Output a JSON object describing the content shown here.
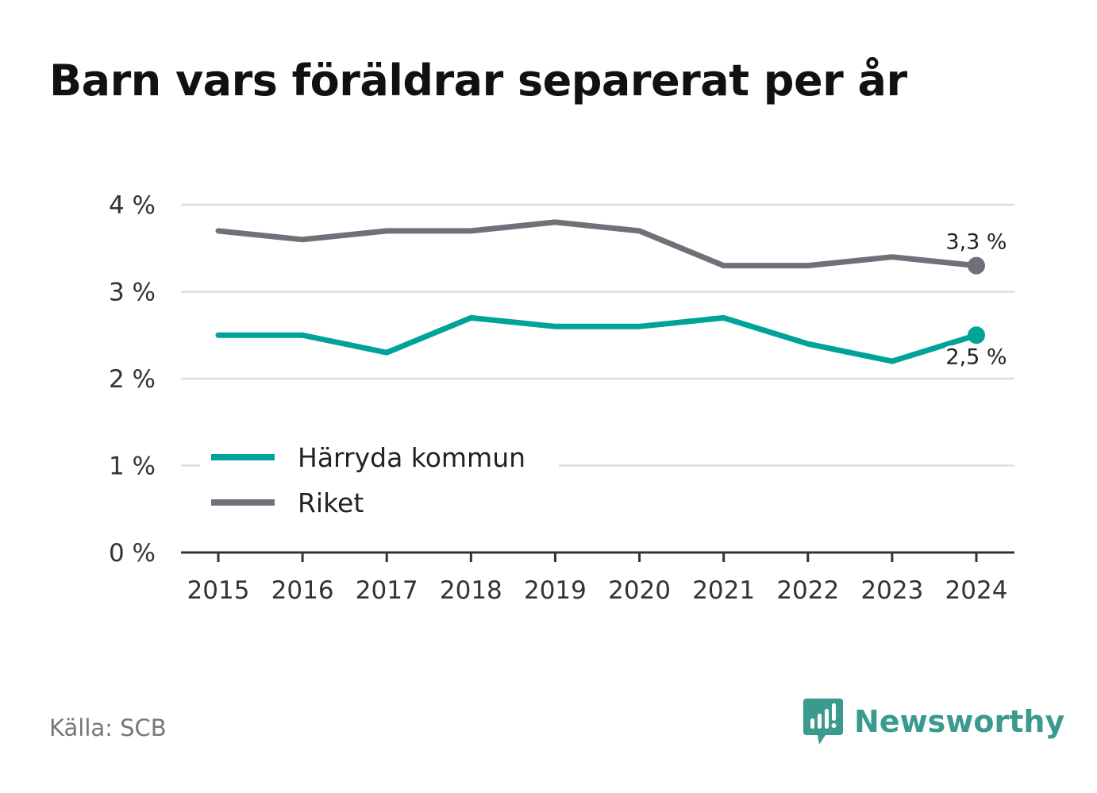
{
  "title": "Barn vars föräldrar separerat per år",
  "source": "Källa: SCB",
  "brand": "Newsworthy",
  "colors": {
    "brand": "#3a9a8d"
  },
  "chart_data": {
    "type": "line",
    "title": "Barn vars föräldrar separerat per år",
    "xlabel": "",
    "ylabel": "",
    "x": [
      "2015",
      "2016",
      "2017",
      "2018",
      "2019",
      "2020",
      "2021",
      "2022",
      "2023",
      "2024"
    ],
    "ylim": [
      0,
      4
    ],
    "yticks": [
      0,
      1,
      2,
      3,
      4
    ],
    "ytick_labels": [
      "0 %",
      "1 %",
      "2 %",
      "3 %",
      "4 %"
    ],
    "grid": true,
    "legend_position": "lower-left",
    "series": [
      {
        "name": "Härryda kommun",
        "color": "#00a39a",
        "values": [
          2.5,
          2.5,
          2.3,
          2.7,
          2.6,
          2.6,
          2.7,
          2.4,
          2.2,
          2.5
        ],
        "end_label": "2,5 %"
      },
      {
        "name": "Riket",
        "color": "#707078",
        "values": [
          3.7,
          3.6,
          3.7,
          3.7,
          3.8,
          3.7,
          3.3,
          3.3,
          3.4,
          3.3
        ],
        "end_label": "3,3 %"
      }
    ]
  }
}
